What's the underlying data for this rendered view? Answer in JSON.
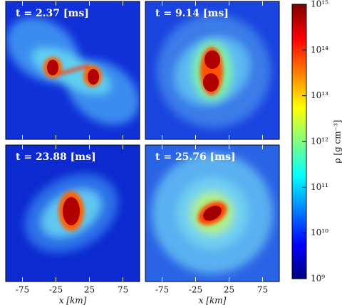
{
  "chart_data": {
    "type": "heatmap",
    "panels": [
      {
        "title": "t = 2.37 [ms]"
      },
      {
        "title": "t = 9.14 [ms]"
      },
      {
        "title": "t = 23.88 [ms]"
      },
      {
        "title": "t = 25.76 [ms]"
      }
    ],
    "xlabel": "x [km]",
    "xlim": [
      -100,
      100
    ],
    "xticks": [
      -75,
      -25,
      25,
      75
    ],
    "colorbar_label": "ρ [g cm⁻³]",
    "clim": [
      1000000000,
      1000000000000000
    ],
    "log": true,
    "cticks": [
      {
        "value": 1000000000,
        "label": "10⁹"
      },
      {
        "value": 10000000000,
        "label": "10¹⁰"
      },
      {
        "value": 100000000000,
        "label": "10¹¹"
      },
      {
        "value": 1000000000000,
        "label": "10¹²"
      },
      {
        "value": 10000000000000,
        "label": "10¹³"
      },
      {
        "value": 100000000000000,
        "label": "10¹⁴"
      },
      {
        "value": 1000000000000000,
        "label": "10¹⁵"
      }
    ],
    "colormap": [
      "#00007f",
      "#0000ff",
      "#0080ff",
      "#00ffff",
      "#80ff80",
      "#ffff00",
      "#ff8000",
      "#ff0000",
      "#7f0000"
    ]
  }
}
